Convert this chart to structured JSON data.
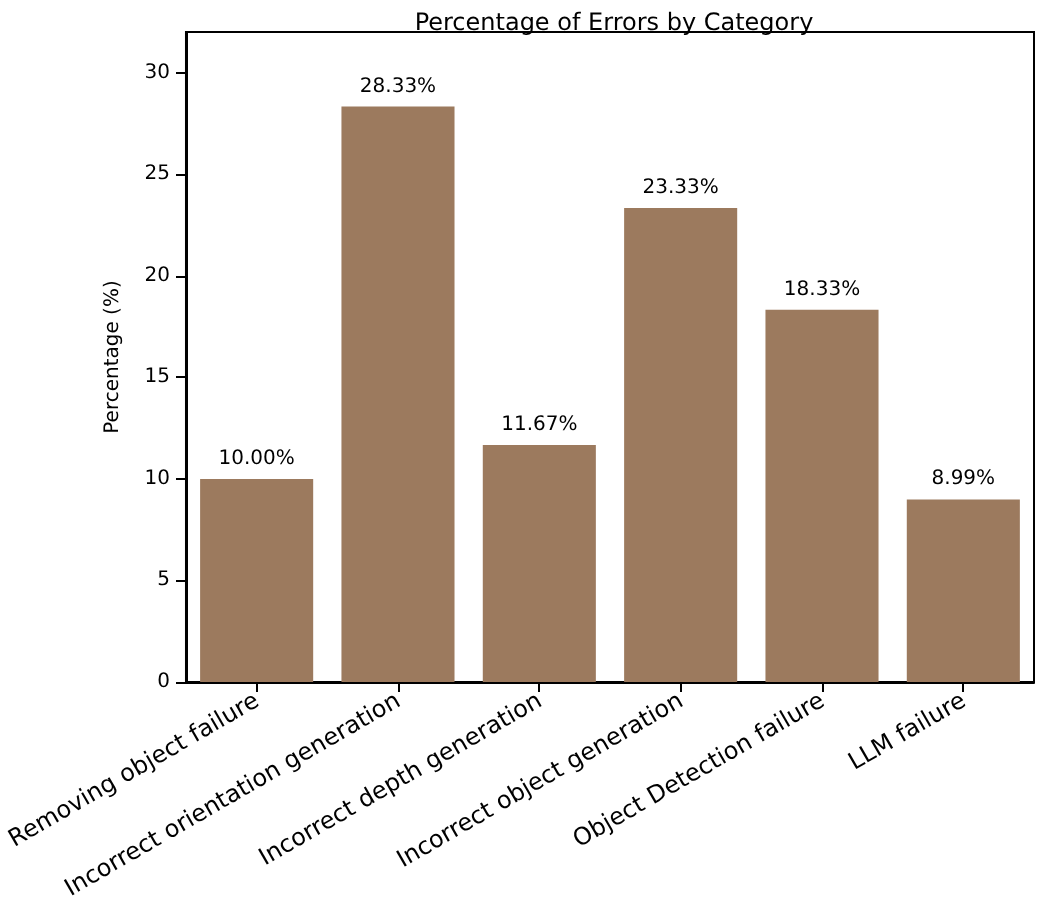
{
  "chart_data": {
    "type": "bar",
    "title": "Percentage of Errors by Category",
    "ylabel": "Percentage (%)",
    "categories": [
      "Removing object failure",
      "Incorrect orientation generation",
      "Incorrect depth generation",
      "Incorrect object generation",
      "Object Detection failure",
      "LLM failure"
    ],
    "values": [
      10.0,
      28.33,
      11.67,
      23.33,
      18.33,
      8.99
    ],
    "value_labels": [
      "10.00%",
      "28.33%",
      "11.67%",
      "23.33%",
      "18.33%",
      "8.99%"
    ],
    "color": "#9c7a5e",
    "ylim": [
      0,
      32
    ],
    "yticks": [
      0,
      5,
      10,
      15,
      20,
      25,
      30
    ],
    "grid": false
  }
}
